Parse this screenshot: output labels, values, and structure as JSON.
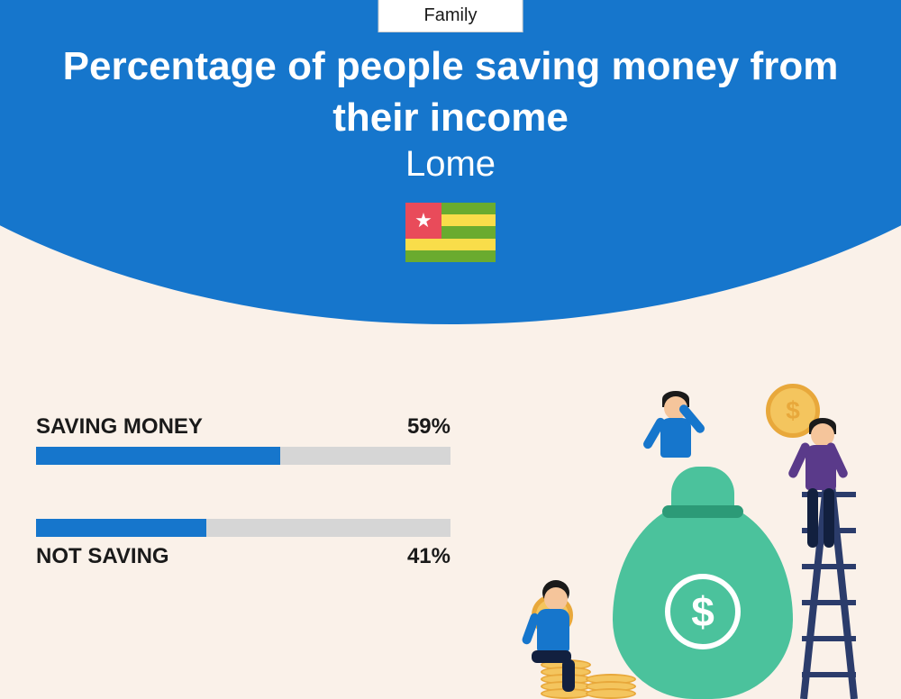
{
  "category": "Family",
  "title": "Percentage of people saving money from their income",
  "location": "Lome",
  "flag": {
    "stripes": [
      "#6aab2f",
      "#f9dd4a",
      "#6aab2f",
      "#f9dd4a",
      "#6aab2f"
    ],
    "canton_color": "#e94b5a",
    "star_color": "#ffffff"
  },
  "chart": {
    "type": "bar",
    "track_color": "#d6d6d6",
    "fill_color": "#1676cc",
    "label_fontsize": 24,
    "label_color": "#1a1a1a",
    "bars": [
      {
        "label": "SAVING MONEY",
        "value": 59,
        "display": "59%",
        "label_position": "above"
      },
      {
        "label": "NOT SAVING",
        "value": 41,
        "display": "41%",
        "label_position": "below"
      }
    ]
  },
  "colors": {
    "header_bg": "#1676cc",
    "page_bg": "#faf1e9",
    "title_text": "#ffffff",
    "bag": "#4bc29c",
    "bag_shadow": "#2c9a77",
    "coin_fill": "#f4c55e",
    "coin_edge": "#e8a83b",
    "ladder": "#2b3c6b",
    "skin": "#f5c59b",
    "shirt1": "#1676cc",
    "shirt2": "#5a3a8a",
    "shirt3": "#1676cc",
    "pants_dark": "#12203f"
  }
}
